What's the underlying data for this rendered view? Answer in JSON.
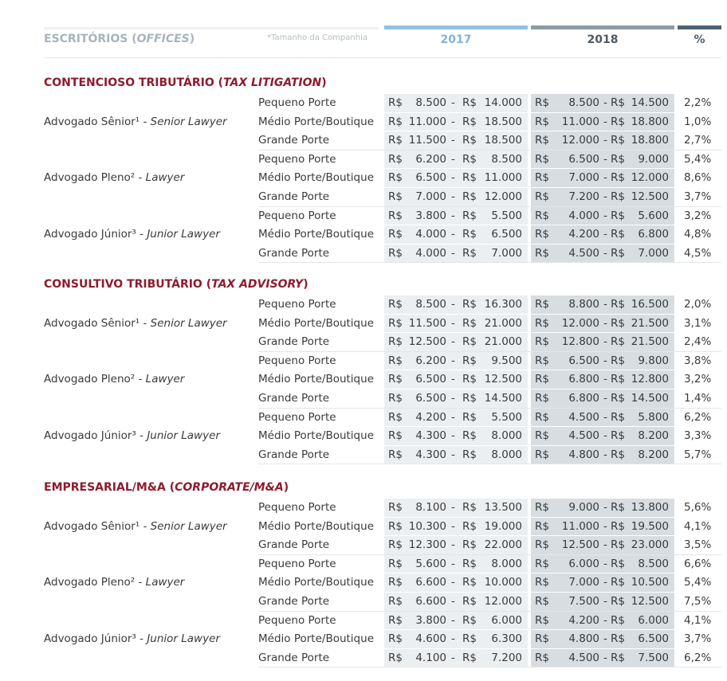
{
  "header": {
    "offices": {
      "pt": "ESCRITÓRIOS (",
      "en": "OFFICES",
      "close": ")"
    },
    "size_note": "*Tamanho da Companhia",
    "year1": "2017",
    "year2": "2018",
    "pct": "%",
    "currency": "R$",
    "sep": "-"
  },
  "roles": [
    {
      "pt": "Advogado Sênior¹ - ",
      "en": "Senior Lawyer"
    },
    {
      "pt": "Advogado Pleno² - ",
      "en": "Lawyer"
    },
    {
      "pt": "Advogado Júnior³ - ",
      "en": "Junior Lawyer"
    }
  ],
  "sizes": [
    "Pequeno Porte",
    "Médio Porte/Boutique",
    "Grande Porte"
  ],
  "sections": [
    {
      "title": {
        "pt": "CONTENCIOSO TRIBUTÁRIO (",
        "en": "TAX LITIGATION",
        "close": ")"
      },
      "groups": [
        {
          "rows": [
            [
              "8.500",
              "14.000",
              "8.500",
              "14.500",
              "2,2%"
            ],
            [
              "11.000",
              "18.500",
              "11.000",
              "18.800",
              "1,0%"
            ],
            [
              "11.500",
              "18.500",
              "12.000",
              "18.800",
              "2,7%"
            ]
          ]
        },
        {
          "rows": [
            [
              "6.200",
              "8.500",
              "6.500",
              "9.000",
              "5,4%"
            ],
            [
              "6.500",
              "11.000",
              "7.000",
              "12.000",
              "8,6%"
            ],
            [
              "7.000",
              "12.000",
              "7.200",
              "12.500",
              "3,7%"
            ]
          ]
        },
        {
          "rows": [
            [
              "3.800",
              "5.500",
              "4.000",
              "5.600",
              "3,2%"
            ],
            [
              "4.000",
              "6.500",
              "4.200",
              "6.800",
              "4,8%"
            ],
            [
              "4.000",
              "7.000",
              "4.500",
              "7.000",
              "4,5%"
            ]
          ]
        }
      ]
    },
    {
      "title": {
        "pt": "CONSULTIVO TRIBUTÁRIO (",
        "en": "TAX ADVISORY",
        "close": ")"
      },
      "groups": [
        {
          "rows": [
            [
              "8.500",
              "16.300",
              "8.800",
              "16.500",
              "2,0%"
            ],
            [
              "11.500",
              "21.000",
              "12.000",
              "21.500",
              "3,1%"
            ],
            [
              "12.500",
              "21.000",
              "12.800",
              "21.500",
              "2,4%"
            ]
          ]
        },
        {
          "rows": [
            [
              "6.200",
              "9.500",
              "6.500",
              "9.800",
              "3,8%"
            ],
            [
              "6.500",
              "12.500",
              "6.800",
              "12.800",
              "3,2%"
            ],
            [
              "6.500",
              "14.500",
              "6.800",
              "14.500",
              "1,4%"
            ]
          ]
        },
        {
          "rows": [
            [
              "4.200",
              "5.500",
              "4.500",
              "5.800",
              "6,2%"
            ],
            [
              "4.300",
              "8.000",
              "4.500",
              "8.200",
              "3,3%"
            ],
            [
              "4.300",
              "8.000",
              "4.800",
              "8.200",
              "5,7%"
            ]
          ]
        }
      ]
    },
    {
      "title": {
        "pt": "EMPRESARIAL/M&A (",
        "en": "CORPORATE/M&A",
        "close": ")"
      },
      "groups": [
        {
          "rows": [
            [
              "8.100",
              "13.500",
              "9.000",
              "13.800",
              "5,6%"
            ],
            [
              "10.300",
              "19.000",
              "11.000",
              "19.500",
              "4,1%"
            ],
            [
              "12.300",
              "22.000",
              "12.500",
              "23.000",
              "3,5%"
            ]
          ]
        },
        {
          "rows": [
            [
              "5.600",
              "8.000",
              "6.000",
              "8.500",
              "6,6%"
            ],
            [
              "6.600",
              "10.000",
              "7.000",
              "10.500",
              "5,4%"
            ],
            [
              "6.600",
              "12.000",
              "7.500",
              "12.500",
              "7,5%"
            ]
          ]
        },
        {
          "rows": [
            [
              "3.800",
              "6.000",
              "4.200",
              "6.000",
              "4,1%"
            ],
            [
              "4.600",
              "6.300",
              "4.800",
              "6.500",
              "3,7%"
            ],
            [
              "4.100",
              "7.200",
              "4.500",
              "7.500",
              "6,2%"
            ]
          ]
        }
      ]
    }
  ]
}
